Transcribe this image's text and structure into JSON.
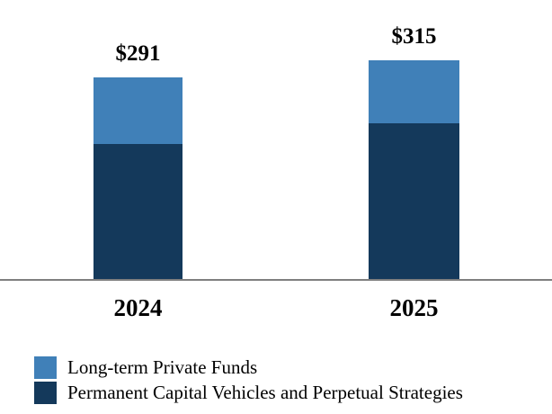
{
  "chart_data": {
    "type": "bar",
    "stacked": true,
    "categories": [
      "2024",
      "2025"
    ],
    "series": [
      {
        "name": "Long-term Private Funds",
        "color": "#4080B8",
        "values": [
          96,
          90
        ]
      },
      {
        "name": "Permanent Capital Vehicles and Perpetual Strategies",
        "color": "#14395B",
        "values": [
          195,
          225
        ]
      }
    ],
    "totals": [
      291,
      315
    ],
    "total_labels": [
      "$291",
      "$315"
    ],
    "value_prefix": "$",
    "title": "",
    "xlabel": "",
    "ylabel": "",
    "grid": false,
    "legend_position": "bottom-left",
    "axis_line_color": "#7F7F7F",
    "background_color": "#FFFFFF",
    "text_color": "#000000"
  }
}
